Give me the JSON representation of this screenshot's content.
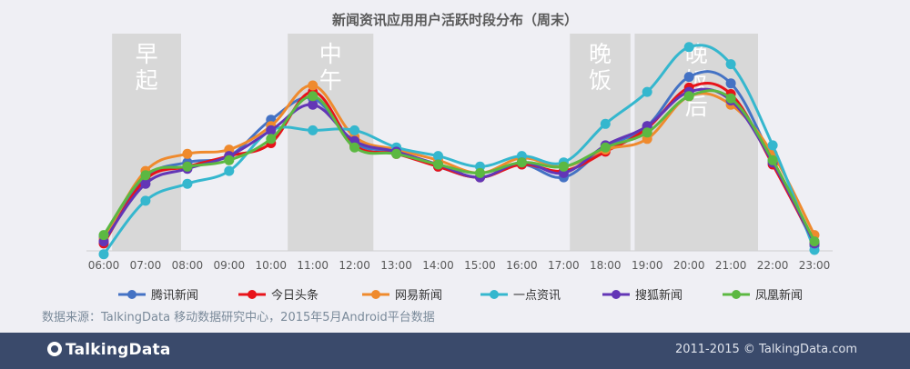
{
  "chart_data": {
    "type": "line",
    "title": "新闻资讯应用用户活跃时段分布（周末）",
    "categories": [
      "06:00",
      "07:00",
      "08:00",
      "09:00",
      "10:00",
      "11:00",
      "12:00",
      "13:00",
      "14:00",
      "15:00",
      "16:00",
      "17:00",
      "18:00",
      "19:00",
      "20:00",
      "21:00",
      "22:00",
      "23:00"
    ],
    "ylim": [
      0,
      100
    ],
    "grid": false,
    "legend_position": "bottom",
    "bands": [
      {
        "label": "早起",
        "from": 0.2,
        "to": 1.85
      },
      {
        "label": "中午",
        "from": 4.4,
        "to": 6.45
      },
      {
        "label": "晚饭",
        "from": 11.15,
        "to": 12.6
      },
      {
        "label": "晚饭后",
        "from": 12.7,
        "to": 15.65
      }
    ],
    "series": [
      {
        "name": "腾讯新闻",
        "color": "#4472c4",
        "values": [
          6,
          34,
          41,
          44,
          61,
          71,
          50,
          46,
          39,
          34,
          40,
          34,
          48,
          58,
          81,
          78,
          42,
          2
        ]
      },
      {
        "name": "今日头条",
        "color": "#e8131a",
        "values": [
          3,
          33,
          39,
          44,
          50,
          74,
          49,
          45,
          39,
          34,
          40,
          37,
          46,
          57,
          76,
          73,
          40,
          3
        ]
      },
      {
        "name": "网易新闻",
        "color": "#ef8a2d",
        "values": [
          5,
          37,
          45,
          47,
          58,
          77,
          53,
          47,
          42,
          36,
          43,
          39,
          47,
          52,
          72,
          68,
          45,
          7
        ]
      },
      {
        "name": "一点资讯",
        "color": "#35b7ce",
        "values": [
          -2,
          23,
          31,
          37,
          56,
          56,
          56,
          48,
          44,
          39,
          44,
          41,
          59,
          74,
          95,
          87,
          49,
          0
        ]
      },
      {
        "name": "搜狐新闻",
        "color": "#6336b6",
        "values": [
          4,
          31,
          38,
          44,
          56,
          68,
          51,
          46,
          40,
          34,
          41,
          36,
          49,
          58,
          74,
          70,
          41,
          3
        ]
      },
      {
        "name": "凤凰新闻",
        "color": "#5cb842",
        "values": [
          7,
          35,
          39,
          42,
          52,
          72,
          48,
          45,
          40,
          36,
          41,
          39,
          48,
          55,
          72,
          71,
          42,
          4
        ]
      }
    ]
  },
  "source_note": "数据来源：TalkingData 移动数据研究中心，2015年5月Android平台数据",
  "footer": {
    "logo_text": "TalkingData",
    "copyright": "2011-2015 © TalkingData.com"
  }
}
